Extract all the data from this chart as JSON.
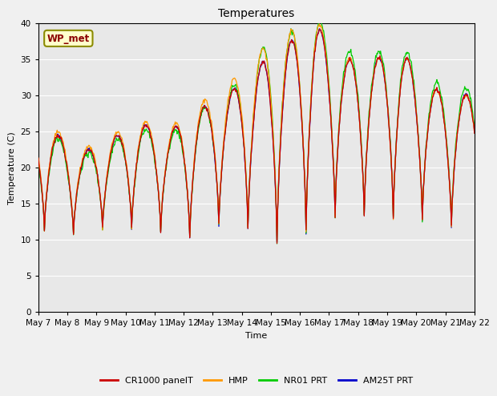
{
  "title": "Temperatures",
  "xlabel": "Time",
  "ylabel": "Temperature (C)",
  "ylim": [
    0,
    40
  ],
  "yticks": [
    0,
    5,
    10,
    15,
    20,
    25,
    30,
    35,
    40
  ],
  "plot_bg_color": "#e8e8e8",
  "fig_bg_color": "#f0f0f0",
  "legend_labels": [
    "CR1000 panelT",
    "HMP",
    "NR01 PRT",
    "AM25T PRT"
  ],
  "legend_colors": [
    "#cc0000",
    "#ff9900",
    "#00cc00",
    "#0000cc"
  ],
  "station_label": "WP_met",
  "x_tick_labels": [
    "May 7",
    "May 8",
    "May 9",
    "May 10",
    "May 11",
    "May 12",
    "May 13",
    "May 14",
    "May 15",
    "May 16",
    "May 17",
    "May 18",
    "May 19",
    "May 20",
    "May 21",
    "May 22"
  ],
  "x_tick_positions": [
    0,
    24,
    48,
    72,
    96,
    120,
    144,
    168,
    192,
    216,
    240,
    264,
    288,
    312,
    336,
    360
  ],
  "num_points": 721,
  "time_start": 0,
  "time_end": 360,
  "day_maxes": [
    25,
    22,
    24,
    26,
    25,
    28,
    30,
    34,
    37,
    40,
    35,
    35,
    36,
    31,
    30
  ],
  "day_mins": [
    10.5,
    11.5,
    11.5,
    11.5,
    9.8,
    12,
    12,
    9.5,
    10.5,
    13,
    13.5,
    13,
    13,
    11.5,
    13
  ]
}
